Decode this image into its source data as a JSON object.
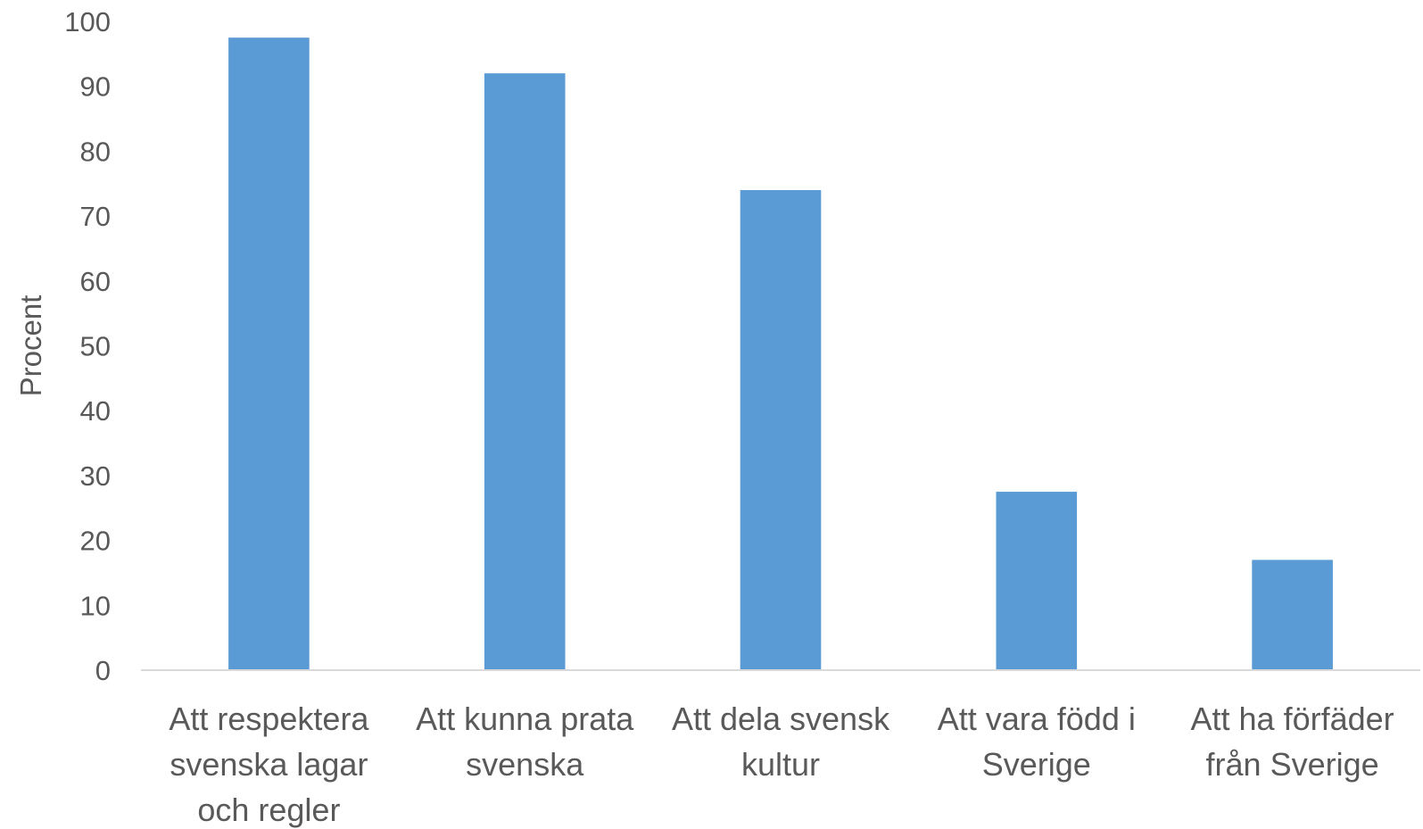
{
  "chart_data": {
    "type": "bar",
    "title": "",
    "xlabel": "",
    "ylabel": "Procent",
    "ylim": [
      0,
      100
    ],
    "yticks": [
      0,
      10,
      20,
      30,
      40,
      50,
      60,
      70,
      80,
      90,
      100
    ],
    "grid": false,
    "legend": "none",
    "bar_color": "#5b9bd5",
    "categories": [
      [
        "Att respektera",
        "svenska lagar",
        "och regler"
      ],
      [
        "Att kunna prata",
        "svenska"
      ],
      [
        "Att dela svensk",
        "kultur"
      ],
      [
        "Att vara född i",
        "Sverige"
      ],
      [
        "Att ha förfäder",
        "från Sverige"
      ]
    ],
    "values": [
      97.5,
      92,
      74,
      27.5,
      17
    ]
  }
}
